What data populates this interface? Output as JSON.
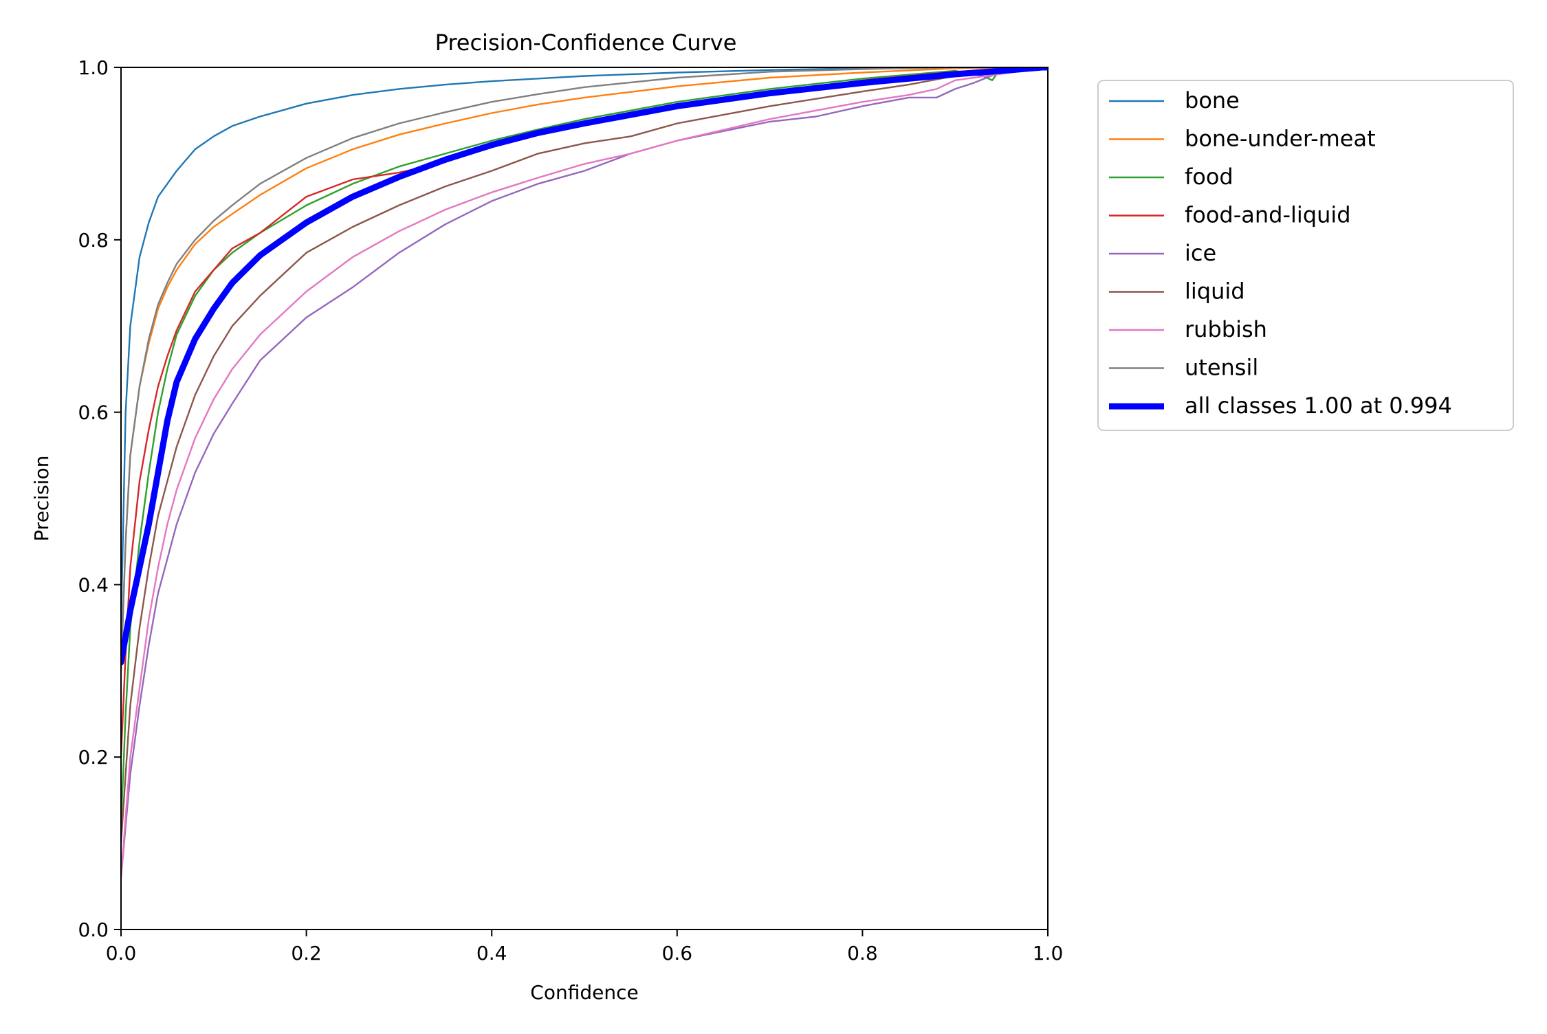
{
  "chart_data": {
    "type": "line",
    "title": "Precision-Confidence Curve",
    "xlabel": "Confidence",
    "ylabel": "Precision",
    "xlim": [
      0,
      1
    ],
    "ylim": [
      0,
      1
    ],
    "x_ticks": [
      "0.0",
      "0.2",
      "0.4",
      "0.6",
      "0.8",
      "1.0"
    ],
    "y_ticks": [
      "0.0",
      "0.2",
      "0.4",
      "0.6",
      "0.8",
      "1.0"
    ],
    "grid": false,
    "legend_position": "outside upper right",
    "series": [
      {
        "name": "bone",
        "color": "#1f77b4",
        "x": [
          0.0,
          0.005,
          0.01,
          0.02,
          0.03,
          0.04,
          0.05,
          0.06,
          0.08,
          0.1,
          0.12,
          0.15,
          0.2,
          0.25,
          0.3,
          0.35,
          0.4,
          0.45,
          0.5,
          0.6,
          0.7,
          0.8,
          0.9,
          1.0
        ],
        "values": [
          0.35,
          0.6,
          0.7,
          0.78,
          0.82,
          0.85,
          0.865,
          0.88,
          0.905,
          0.92,
          0.932,
          0.943,
          0.958,
          0.968,
          0.975,
          0.98,
          0.984,
          0.987,
          0.99,
          0.994,
          0.997,
          0.999,
          1.0,
          1.0
        ]
      },
      {
        "name": "bone-under-meat",
        "color": "#ff7f0e",
        "x": [
          0.0,
          0.005,
          0.01,
          0.02,
          0.03,
          0.04,
          0.05,
          0.06,
          0.08,
          0.1,
          0.12,
          0.15,
          0.2,
          0.25,
          0.3,
          0.35,
          0.4,
          0.45,
          0.5,
          0.6,
          0.7,
          0.8,
          0.9,
          1.0
        ],
        "values": [
          0.3,
          0.45,
          0.55,
          0.63,
          0.68,
          0.72,
          0.745,
          0.765,
          0.795,
          0.815,
          0.83,
          0.852,
          0.883,
          0.905,
          0.922,
          0.935,
          0.947,
          0.957,
          0.965,
          0.978,
          0.988,
          0.994,
          0.999,
          1.0
        ]
      },
      {
        "name": "food",
        "color": "#2ca02c",
        "x": [
          0.0,
          0.005,
          0.01,
          0.02,
          0.03,
          0.04,
          0.05,
          0.06,
          0.08,
          0.1,
          0.12,
          0.15,
          0.2,
          0.25,
          0.3,
          0.35,
          0.4,
          0.45,
          0.5,
          0.6,
          0.7,
          0.8,
          0.9,
          0.93,
          0.94,
          0.95,
          1.0
        ],
        "values": [
          0.12,
          0.25,
          0.35,
          0.45,
          0.53,
          0.6,
          0.65,
          0.69,
          0.735,
          0.765,
          0.785,
          0.808,
          0.84,
          0.865,
          0.885,
          0.9,
          0.915,
          0.928,
          0.94,
          0.96,
          0.975,
          0.987,
          0.996,
          0.99,
          0.985,
          1.0,
          1.0
        ]
      },
      {
        "name": "food-and-liquid",
        "color": "#d62728",
        "x": [
          0.0,
          0.005,
          0.01,
          0.02,
          0.03,
          0.04,
          0.05,
          0.06,
          0.08,
          0.1,
          0.12,
          0.15,
          0.2,
          0.25,
          0.3,
          0.35,
          0.4,
          0.45,
          0.5,
          0.6,
          0.7,
          0.8,
          0.9,
          1.0
        ],
        "values": [
          0.2,
          0.32,
          0.42,
          0.52,
          0.58,
          0.63,
          0.665,
          0.695,
          0.74,
          0.765,
          0.79,
          0.808,
          0.85,
          0.87,
          0.878,
          0.89,
          0.912,
          0.925,
          0.935,
          0.955,
          0.97,
          0.985,
          0.995,
          1.0
        ]
      },
      {
        "name": "ice",
        "color": "#9467bd",
        "x": [
          0.0,
          0.005,
          0.01,
          0.02,
          0.03,
          0.04,
          0.05,
          0.06,
          0.08,
          0.1,
          0.12,
          0.15,
          0.2,
          0.25,
          0.3,
          0.35,
          0.4,
          0.45,
          0.5,
          0.55,
          0.6,
          0.7,
          0.75,
          0.8,
          0.85,
          0.88,
          0.9,
          0.92,
          0.95,
          1.0
        ],
        "values": [
          0.06,
          0.12,
          0.18,
          0.26,
          0.33,
          0.39,
          0.43,
          0.47,
          0.53,
          0.575,
          0.61,
          0.66,
          0.71,
          0.745,
          0.785,
          0.818,
          0.845,
          0.865,
          0.88,
          0.9,
          0.915,
          0.937,
          0.943,
          0.955,
          0.965,
          0.965,
          0.975,
          0.982,
          0.995,
          1.0
        ]
      },
      {
        "name": "liquid",
        "color": "#8c564b",
        "x": [
          0.0,
          0.005,
          0.01,
          0.02,
          0.03,
          0.04,
          0.05,
          0.06,
          0.08,
          0.1,
          0.12,
          0.15,
          0.2,
          0.25,
          0.3,
          0.35,
          0.4,
          0.45,
          0.5,
          0.55,
          0.6,
          0.7,
          0.8,
          0.85,
          0.9,
          0.95,
          1.0
        ],
        "values": [
          0.1,
          0.18,
          0.26,
          0.35,
          0.42,
          0.48,
          0.52,
          0.56,
          0.62,
          0.665,
          0.7,
          0.735,
          0.785,
          0.815,
          0.84,
          0.862,
          0.88,
          0.9,
          0.912,
          0.92,
          0.935,
          0.955,
          0.972,
          0.98,
          0.99,
          0.998,
          1.0
        ]
      },
      {
        "name": "rubbish",
        "color": "#e377c2",
        "x": [
          0.0,
          0.005,
          0.01,
          0.02,
          0.03,
          0.04,
          0.05,
          0.06,
          0.08,
          0.1,
          0.12,
          0.15,
          0.2,
          0.25,
          0.3,
          0.35,
          0.4,
          0.45,
          0.5,
          0.55,
          0.6,
          0.7,
          0.8,
          0.85,
          0.88,
          0.9,
          1.0
        ],
        "values": [
          0.06,
          0.13,
          0.2,
          0.28,
          0.36,
          0.42,
          0.47,
          0.51,
          0.57,
          0.615,
          0.65,
          0.69,
          0.74,
          0.78,
          0.81,
          0.835,
          0.855,
          0.872,
          0.888,
          0.9,
          0.915,
          0.94,
          0.96,
          0.968,
          0.975,
          0.985,
          1.0
        ]
      },
      {
        "name": "utensil",
        "color": "#7f7f7f",
        "x": [
          0.0,
          0.005,
          0.01,
          0.02,
          0.03,
          0.04,
          0.05,
          0.06,
          0.08,
          0.1,
          0.12,
          0.15,
          0.2,
          0.25,
          0.3,
          0.35,
          0.4,
          0.45,
          0.5,
          0.6,
          0.7,
          0.8,
          0.9,
          1.0
        ],
        "values": [
          0.3,
          0.45,
          0.55,
          0.63,
          0.685,
          0.725,
          0.75,
          0.772,
          0.8,
          0.822,
          0.84,
          0.865,
          0.895,
          0.918,
          0.935,
          0.948,
          0.96,
          0.969,
          0.977,
          0.988,
          0.995,
          0.998,
          1.0,
          1.0
        ]
      },
      {
        "name": "all classes 1.00 at 0.994",
        "color": "#0000ff",
        "bold": true,
        "x": [
          0.0,
          0.005,
          0.01,
          0.02,
          0.03,
          0.04,
          0.05,
          0.06,
          0.08,
          0.1,
          0.12,
          0.15,
          0.2,
          0.25,
          0.3,
          0.35,
          0.4,
          0.45,
          0.5,
          0.6,
          0.7,
          0.8,
          0.9,
          0.95,
          0.994,
          1.0
        ],
        "values": [
          0.31,
          0.34,
          0.37,
          0.42,
          0.47,
          0.53,
          0.59,
          0.635,
          0.685,
          0.72,
          0.75,
          0.782,
          0.82,
          0.85,
          0.873,
          0.893,
          0.91,
          0.924,
          0.935,
          0.955,
          0.97,
          0.982,
          0.992,
          0.996,
          1.0,
          1.0
        ]
      }
    ]
  }
}
